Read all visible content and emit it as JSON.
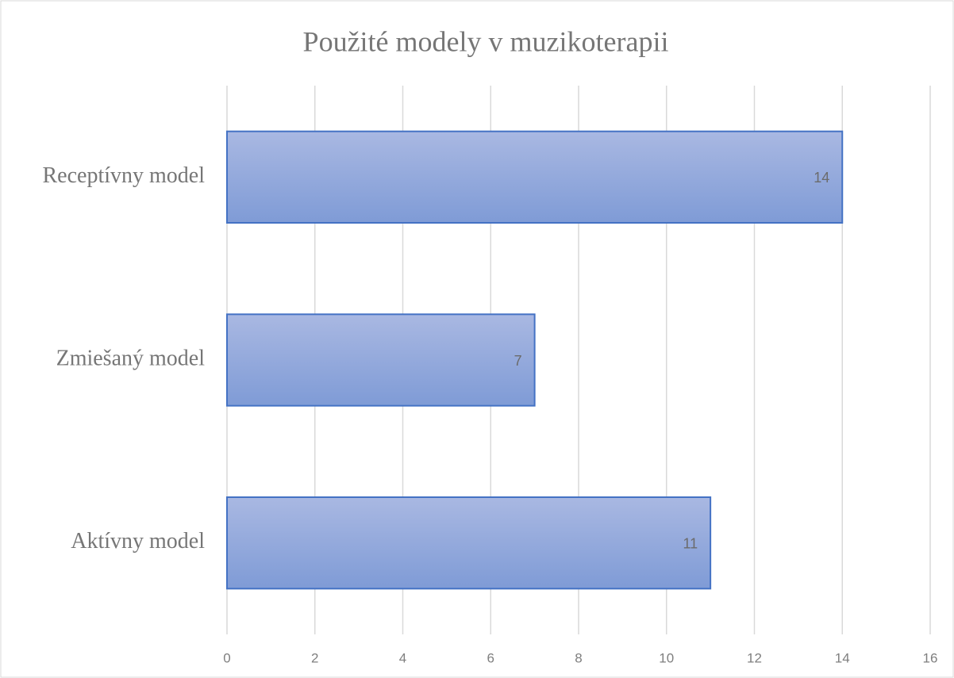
{
  "chart_data": {
    "type": "hbar",
    "title": "Použité modely v muzikoterapii",
    "categories": [
      "Receptívny model",
      "Zmiešaný model",
      "Aktívny model"
    ],
    "values": [
      14,
      7,
      11
    ],
    "color": "#8aa3da",
    "xlim": [
      0,
      16
    ],
    "xticks": [
      0,
      2,
      4,
      6,
      8,
      10,
      12,
      14,
      16
    ],
    "grid": true
  }
}
